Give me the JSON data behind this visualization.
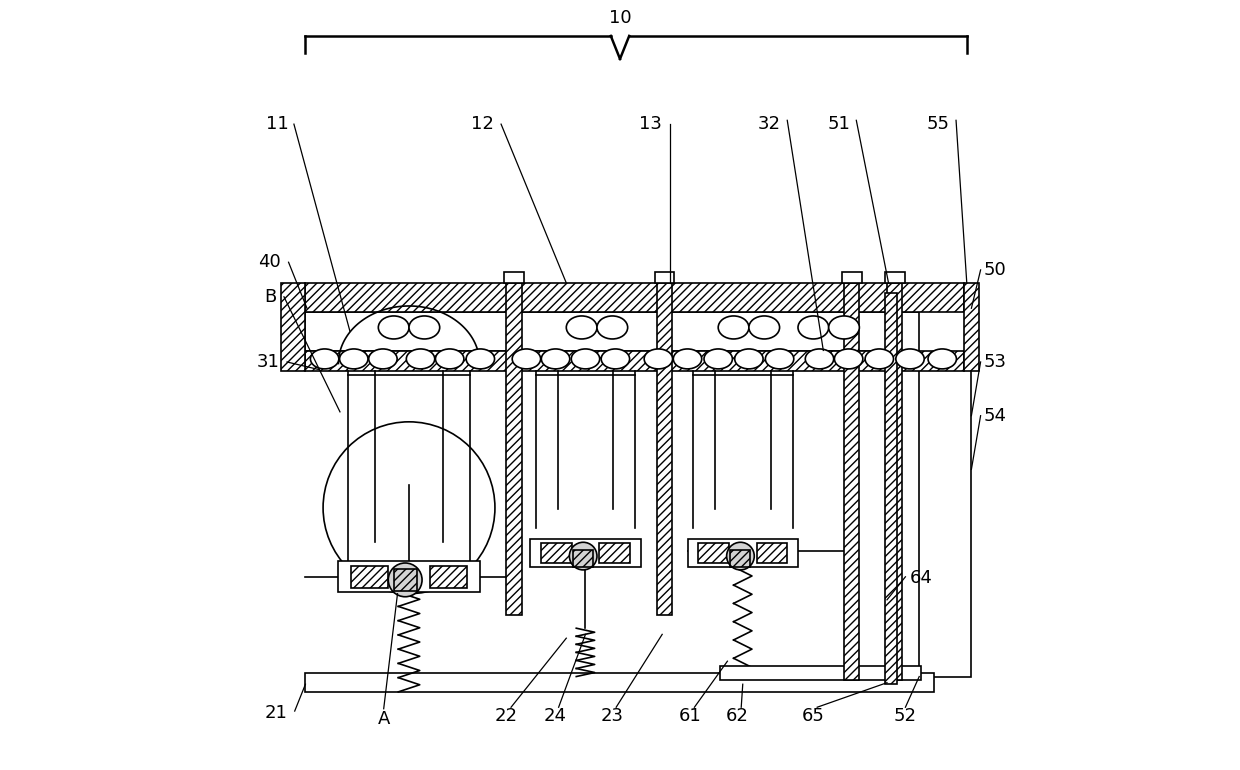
{
  "bg_color": "#ffffff",
  "line_color": "#000000",
  "hatch_color": "#000000",
  "label_fontsize": 13,
  "figsize": [
    12.4,
    7.7
  ],
  "dpi": 100
}
